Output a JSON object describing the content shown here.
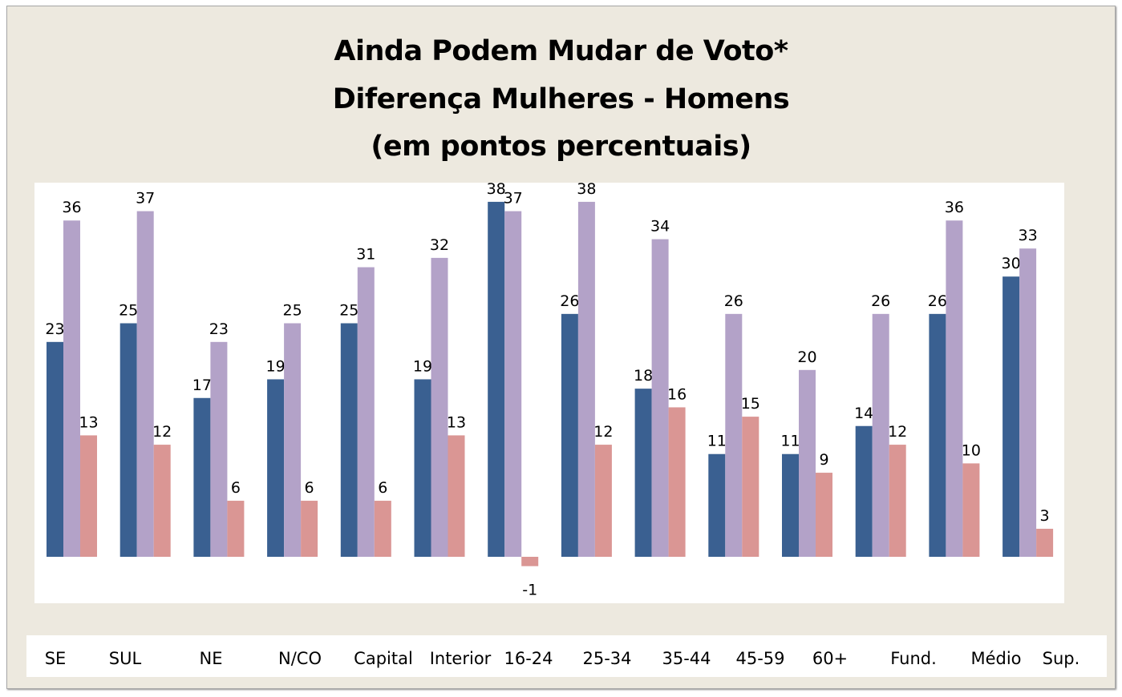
{
  "chart_data": {
    "type": "bar",
    "title": [
      "Ainda Podem Mudar de Voto*",
      "Diferença Mulheres - Homens",
      "(em pontos percentuais)"
    ],
    "categories": [
      "SE",
      "SUL",
      "NE",
      "N/CO",
      "Capital",
      "Interior",
      "16-24",
      "25-34",
      "35-44",
      "45-59",
      "60+",
      "Fund.",
      "Médio",
      "Sup."
    ],
    "series": [
      {
        "values": [
          23,
          25,
          17,
          19,
          25,
          19,
          38,
          26,
          18,
          11,
          11,
          14,
          26,
          30
        ],
        "color": "#3a6091"
      },
      {
        "values": [
          36,
          37,
          23,
          25,
          31,
          32,
          37,
          38,
          34,
          26,
          20,
          26,
          36,
          33
        ],
        "color": "#b3a2c8"
      },
      {
        "values": [
          13,
          12,
          6,
          6,
          6,
          13,
          -1,
          12,
          16,
          15,
          9,
          12,
          10,
          3
        ],
        "color": "#da9694"
      }
    ],
    "ylim": [
      -5,
      40
    ],
    "grid": false,
    "legend": "none",
    "data_labels": true,
    "background": "#ede9df"
  }
}
